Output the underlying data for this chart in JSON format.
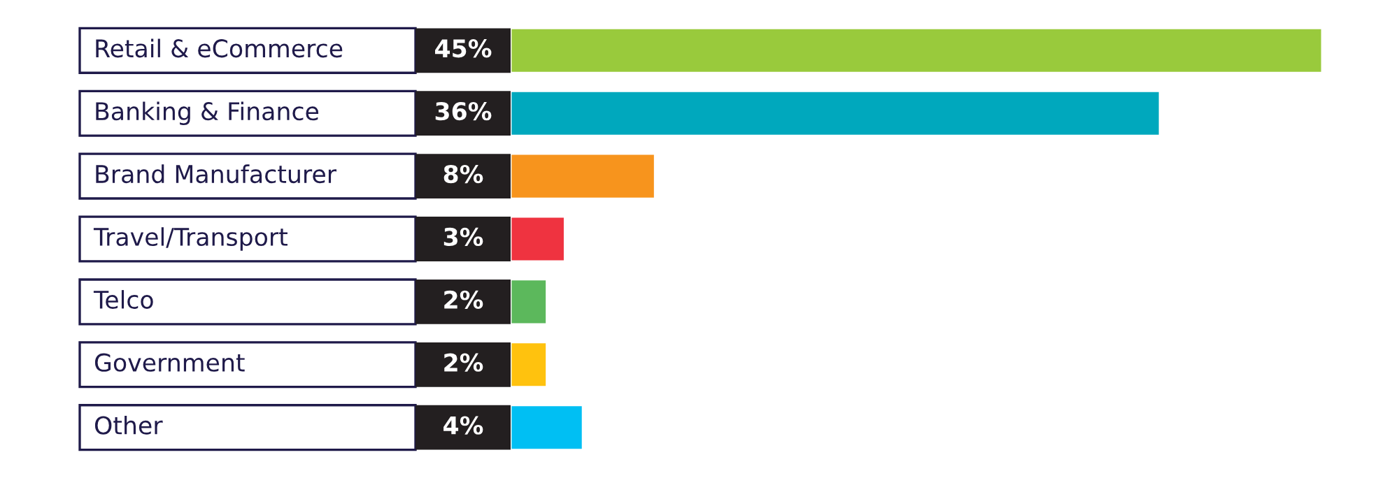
{
  "chart_data": {
    "type": "bar",
    "orientation": "horizontal",
    "value_labels": [
      "45%",
      "36%",
      "8%",
      "3%",
      "2%",
      "2%",
      "4%"
    ],
    "categories": [
      "Retail & eCommerce",
      "Banking & Finance",
      "Brand Manufacturer",
      "Travel/Transport",
      "Telco",
      "Government",
      "Other"
    ],
    "values": [
      45,
      36,
      8,
      3,
      2,
      2,
      4
    ],
    "colors": [
      "#99ca3c",
      "#00a8bd",
      "#f7941d",
      "#ef3340",
      "#5cb85c",
      "#ffc20e",
      "#00bff3"
    ]
  }
}
